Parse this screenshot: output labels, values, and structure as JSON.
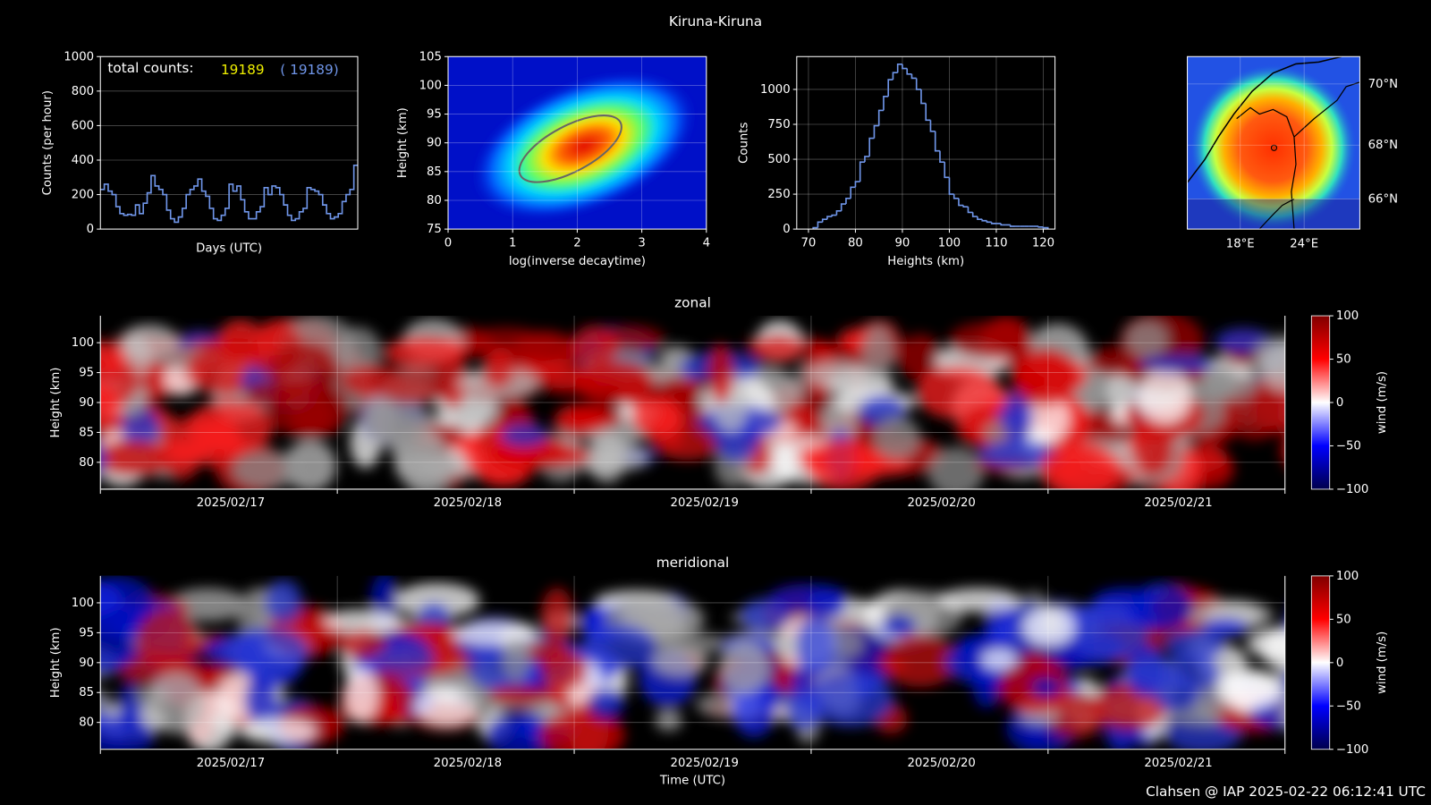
{
  "title": "Kiruna-Kiruna",
  "footer": "Clahsen @ IAP 2025-02-22 06:12:41 UTC",
  "chart_data": [
    {
      "type": "line",
      "drawstyle": "steps",
      "xlabel": "Days (UTC)",
      "ylabel": "Counts (per hour)",
      "color": "#6f95e8",
      "ylim": [
        0,
        1000
      ],
      "yticks": [
        0,
        200,
        400,
        600,
        800,
        1000
      ],
      "grid": true,
      "annotation": "total counts:",
      "total_counts": 19189,
      "total_counts_color": "#f0f000",
      "total_counts_bracket": "( 19189)",
      "values": [
        230,
        260,
        220,
        200,
        130,
        90,
        80,
        85,
        80,
        140,
        90,
        150,
        210,
        310,
        250,
        230,
        200,
        110,
        60,
        40,
        70,
        120,
        200,
        230,
        250,
        290,
        220,
        190,
        120,
        60,
        50,
        80,
        120,
        260,
        220,
        250,
        170,
        100,
        60,
        60,
        100,
        130,
        240,
        200,
        250,
        240,
        200,
        140,
        80,
        50,
        60,
        100,
        120,
        240,
        230,
        220,
        200,
        140,
        90,
        60,
        70,
        90,
        160,
        200,
        230,
        370
      ]
    },
    {
      "type": "heatmap",
      "xlabel": "log(inverse decaytime)",
      "ylabel": "Height (km)",
      "xlim": [
        0,
        4
      ],
      "xticks": [
        0,
        1,
        2,
        3,
        4
      ],
      "ylim": [
        75,
        105
      ],
      "yticks": [
        75,
        80,
        85,
        90,
        95,
        100,
        105
      ],
      "grid": true
    },
    {
      "type": "histogram",
      "xlabel": "Heights (km)",
      "ylabel": "Counts",
      "color": "#6f95e8",
      "xlim": [
        67.5,
        122.5
      ],
      "xticks": [
        70,
        80,
        90,
        100,
        110,
        120
      ],
      "ylim": [
        0,
        1235
      ],
      "yticks": [
        0,
        250,
        500,
        750,
        1000
      ],
      "grid": true,
      "bins": [
        71,
        72,
        73,
        74,
        75,
        76,
        77,
        78,
        79,
        80,
        81,
        82,
        83,
        84,
        85,
        86,
        87,
        88,
        89,
        90,
        91,
        92,
        93,
        94,
        95,
        96,
        97,
        98,
        99,
        100,
        101,
        102,
        103,
        104,
        105,
        106,
        107,
        108,
        109,
        110,
        111,
        112,
        113,
        114,
        115,
        116,
        117,
        118,
        119,
        120,
        121
      ],
      "counts": [
        10,
        50,
        70,
        90,
        100,
        130,
        180,
        220,
        300,
        340,
        480,
        520,
        650,
        740,
        850,
        950,
        1070,
        1120,
        1180,
        1150,
        1110,
        1080,
        1000,
        900,
        780,
        700,
        560,
        480,
        370,
        250,
        220,
        170,
        160,
        120,
        90,
        70,
        60,
        50,
        40,
        40,
        30,
        30,
        20,
        20,
        20,
        20,
        20,
        20,
        15,
        10
      ]
    },
    {
      "type": "map",
      "lat_labels": [
        "70°N",
        "68°N",
        "66°N"
      ],
      "lon_labels": [
        "18°E",
        "24°E"
      ]
    },
    {
      "type": "heatmap",
      "title": "zonal",
      "ylabel": "Height (km)",
      "ylim": [
        75.5,
        104.5
      ],
      "yticks": [
        80,
        85,
        90,
        95,
        100
      ],
      "grid": true,
      "categories": [
        "2025/02/17",
        "2025/02/18",
        "2025/02/19",
        "2025/02/20",
        "2025/02/21"
      ],
      "colorbar": {
        "label": "wind (m/s)",
        "lim": [
          -100,
          100
        ],
        "ticks": [
          100,
          50,
          0,
          {
            "value": -50,
            "label": "−50"
          },
          {
            "value": -100,
            "label": "−100"
          }
        ]
      }
    },
    {
      "type": "heatmap",
      "title": "meridional",
      "ylabel": "Height (km)",
      "xlabel": "Time (UTC)",
      "ylim": [
        75.5,
        104.5
      ],
      "yticks": [
        80,
        85,
        90,
        95,
        100
      ],
      "grid": true,
      "categories": [
        "2025/02/17",
        "2025/02/18",
        "2025/02/19",
        "2025/02/20",
        "2025/02/21"
      ],
      "colorbar": {
        "label": "wind (m/s)",
        "lim": [
          -100,
          100
        ],
        "ticks": [
          100,
          50,
          0,
          {
            "value": -50,
            "label": "−50"
          },
          {
            "value": -100,
            "label": "−100"
          }
        ]
      }
    }
  ]
}
